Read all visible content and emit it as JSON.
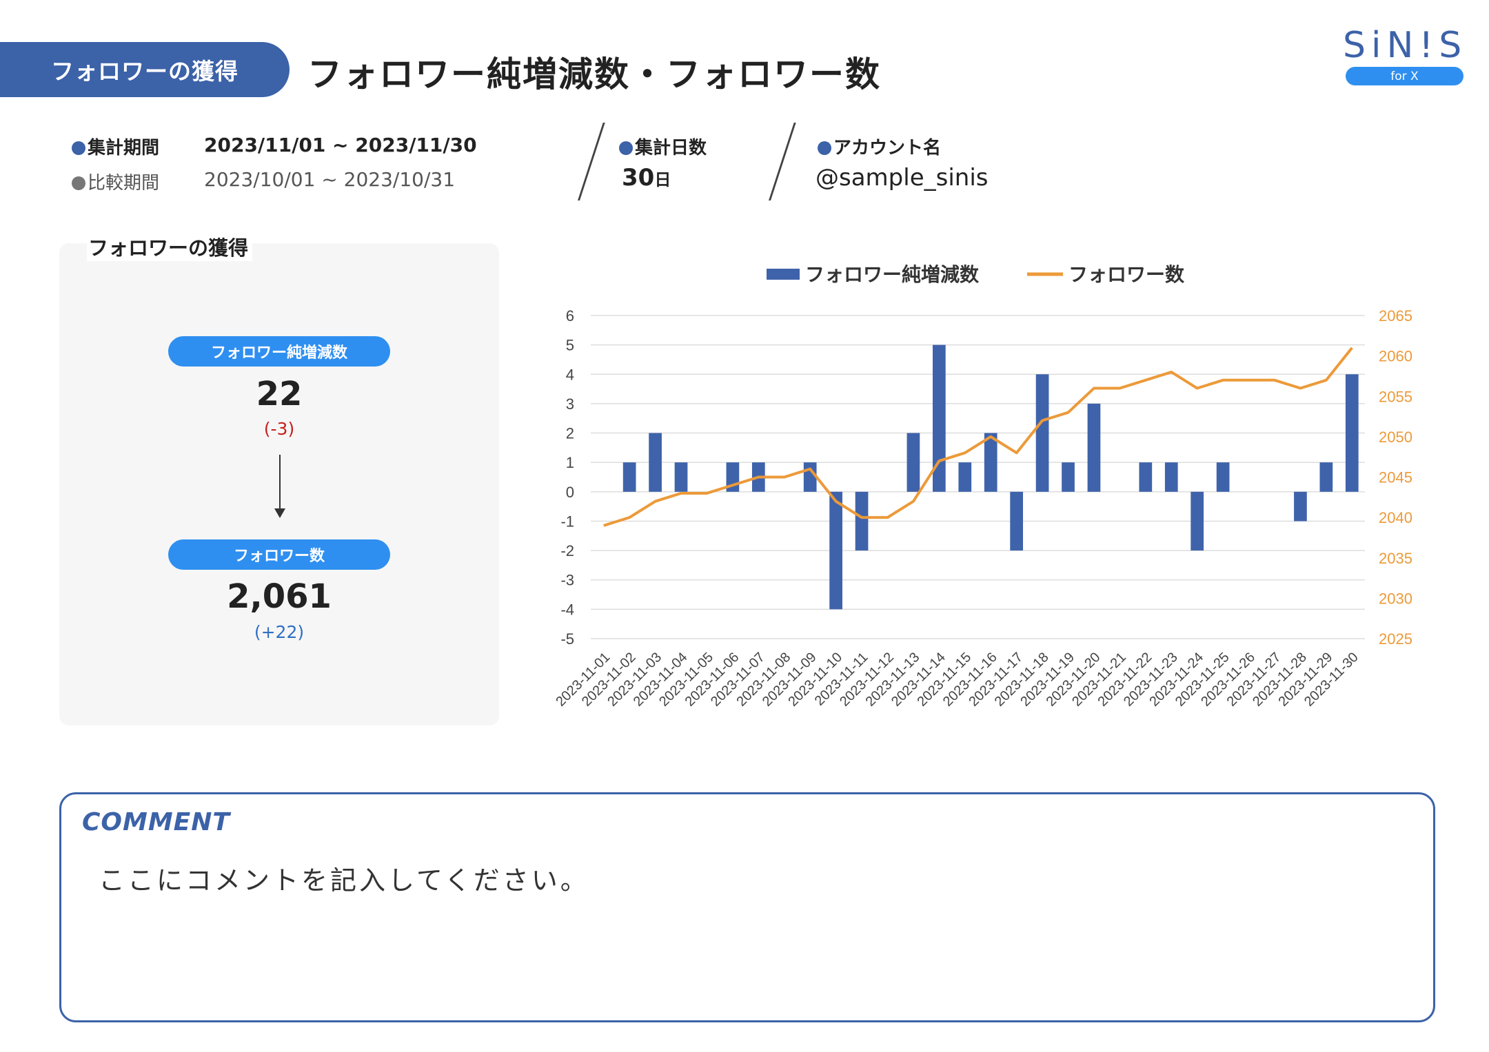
{
  "header": {
    "section_label": "フォロワーの獲得",
    "title": "フォロワー純増減数・フォロワー数"
  },
  "logo": {
    "name": "SiN!S",
    "sub": "for X"
  },
  "meta": {
    "period_label": "集計期間",
    "period_value": "2023/11/01 ~ 2023/11/30",
    "compare_label": "比較期間",
    "compare_value": "2023/10/01 ~ 2023/10/31",
    "days_label": "集計日数",
    "days_number": "30",
    "days_unit": "日",
    "account_label": "アカウント名",
    "account_value": "@sample_sinis"
  },
  "panel": {
    "title": "フォロワーの獲得",
    "net_label": "フォロワー純増減数",
    "net_value": "22",
    "net_diff": "(-3)",
    "followers_label": "フォロワー数",
    "followers_value": "2,061",
    "followers_diff": "(+22)"
  },
  "comment": {
    "title": "COMMENT",
    "text": "ここにコメントを記入してください。"
  },
  "colors": {
    "brand": "#3c62a8",
    "accent": "#2f8ff0",
    "bar": "#3f63ab",
    "line": "#ec9a39",
    "negative": "#c81e1e",
    "positive": "#2f6fc4"
  },
  "chart_data": {
    "type": "bar+line",
    "categories": [
      "2023-11-01",
      "2023-11-02",
      "2023-11-03",
      "2023-11-04",
      "2023-11-05",
      "2023-11-06",
      "2023-11-07",
      "2023-11-08",
      "2023-11-09",
      "2023-11-10",
      "2023-11-11",
      "2023-11-12",
      "2023-11-13",
      "2023-11-14",
      "2023-11-15",
      "2023-11-16",
      "2023-11-17",
      "2023-11-18",
      "2023-11-19",
      "2023-11-20",
      "2023-11-21",
      "2023-11-22",
      "2023-11-23",
      "2023-11-24",
      "2023-11-25",
      "2023-11-26",
      "2023-11-27",
      "2023-11-28",
      "2023-11-29",
      "2023-11-30"
    ],
    "series": [
      {
        "name": "フォロワー純増減数",
        "type": "bar",
        "axis": "left",
        "values": [
          0,
          1,
          2,
          1,
          0,
          1,
          1,
          0,
          1,
          -4,
          -2,
          0,
          2,
          5,
          1,
          2,
          -2,
          4,
          1,
          3,
          0,
          1,
          1,
          -2,
          1,
          0,
          0,
          -1,
          1,
          4
        ]
      },
      {
        "name": "フォロワー数",
        "type": "line",
        "axis": "right",
        "values": [
          2039,
          2040,
          2042,
          2043,
          2043,
          2044,
          2045,
          2045,
          2046,
          2042,
          2040,
          2040,
          2042,
          2047,
          2048,
          2050,
          2048,
          2052,
          2053,
          2056,
          2056,
          2057,
          2058,
          2056,
          2057,
          2057,
          2057,
          2056,
          2057,
          2061
        ]
      }
    ],
    "y_left": {
      "min": -5,
      "max": 6,
      "ticks": [
        6,
        5,
        4,
        3,
        2,
        1,
        0,
        -1,
        -2,
        -3,
        -4,
        -5
      ]
    },
    "y_right": {
      "min": 2025,
      "max": 2065,
      "ticks": [
        2065,
        2060,
        2055,
        2050,
        2045,
        2040,
        2035,
        2030,
        2025
      ]
    },
    "legend_position": "top-center",
    "grid": true
  }
}
